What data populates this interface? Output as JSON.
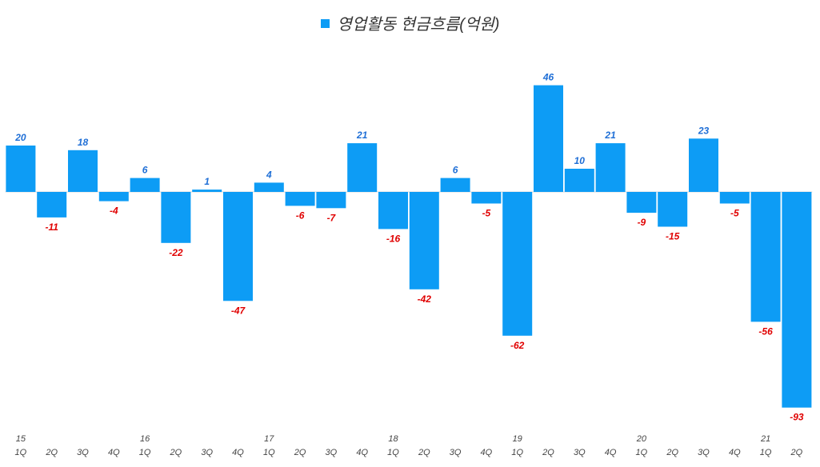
{
  "chart_data": {
    "type": "bar",
    "title": "",
    "legend": {
      "position": "top-center",
      "entries": [
        "영업활동 현금흐름(억원)"
      ]
    },
    "series": [
      {
        "name": "영업활동 현금흐름(억원)",
        "values": [
          20,
          -11,
          18,
          -4,
          6,
          -22,
          1,
          -47,
          4,
          -6,
          -7,
          21,
          -16,
          -42,
          6,
          -5,
          -62,
          46,
          10,
          21,
          -9,
          -15,
          23,
          -5,
          -56,
          -93
        ]
      }
    ],
    "categories": [
      {
        "year": "15",
        "q": "1Q"
      },
      {
        "year": "",
        "q": "2Q"
      },
      {
        "year": "",
        "q": "3Q"
      },
      {
        "year": "",
        "q": "4Q"
      },
      {
        "year": "16",
        "q": "1Q"
      },
      {
        "year": "",
        "q": "2Q"
      },
      {
        "year": "",
        "q": "3Q"
      },
      {
        "year": "",
        "q": "4Q"
      },
      {
        "year": "17",
        "q": "1Q"
      },
      {
        "year": "",
        "q": "2Q"
      },
      {
        "year": "",
        "q": "3Q"
      },
      {
        "year": "",
        "q": "4Q"
      },
      {
        "year": "18",
        "q": "1Q"
      },
      {
        "year": "",
        "q": "2Q"
      },
      {
        "year": "",
        "q": "3Q"
      },
      {
        "year": "",
        "q": "4Q"
      },
      {
        "year": "19",
        "q": "1Q"
      },
      {
        "year": "",
        "q": "2Q"
      },
      {
        "year": "",
        "q": "3Q"
      },
      {
        "year": "",
        "q": "4Q"
      },
      {
        "year": "20",
        "q": "1Q"
      },
      {
        "year": "",
        "q": "2Q"
      },
      {
        "year": "",
        "q": "3Q"
      },
      {
        "year": "",
        "q": "4Q"
      },
      {
        "year": "21",
        "q": "1Q"
      },
      {
        "year": "",
        "q": "2Q"
      }
    ],
    "xlabel": "",
    "ylabel": "",
    "grid": false,
    "colors": {
      "bar": "#0d9cf5",
      "positive_label": "#1f6fd6",
      "negative_label": "#e00000"
    }
  }
}
